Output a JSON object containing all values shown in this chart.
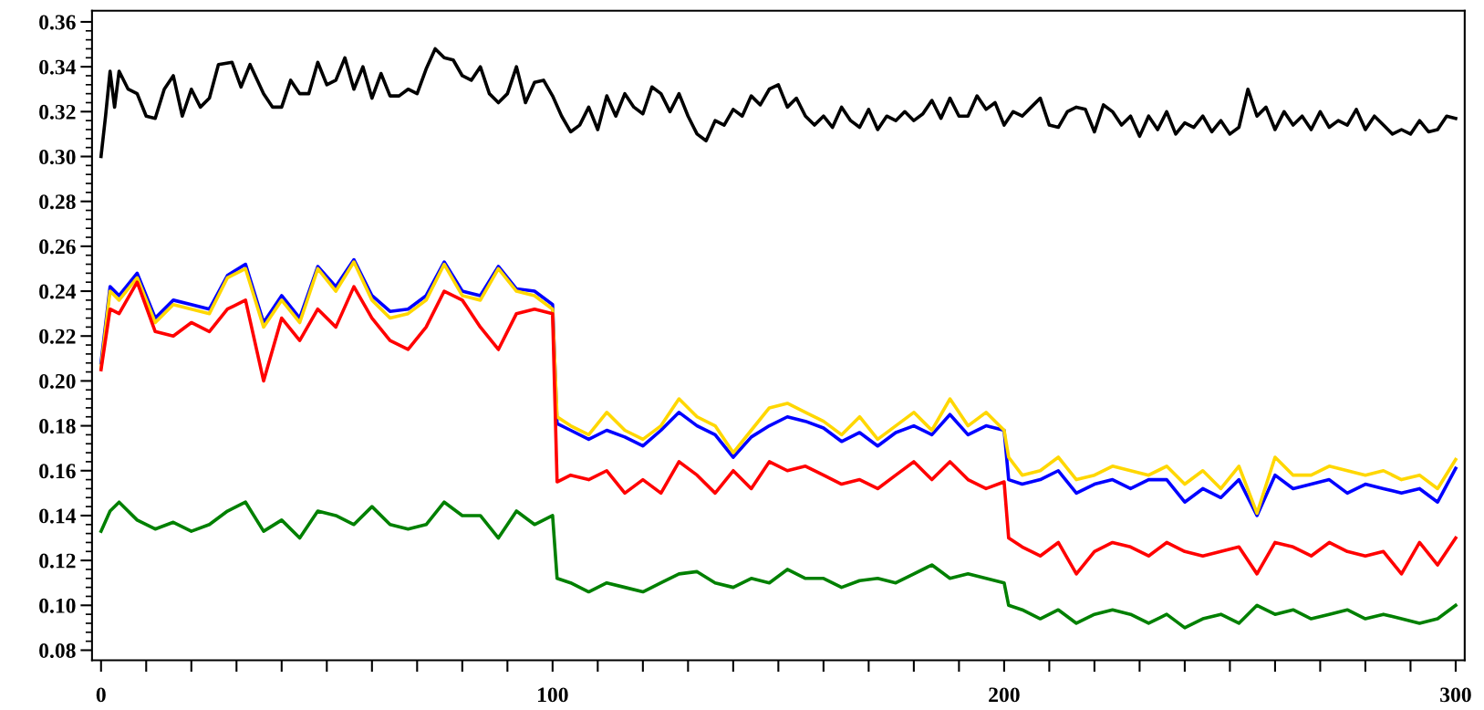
{
  "chart_data": {
    "type": "line",
    "xlim": [
      -2,
      302
    ],
    "ylim": [
      0.0755,
      0.365
    ],
    "xticks": [
      0,
      {
        "value": 10,
        "label": null
      },
      {
        "value": 20,
        "label": null
      },
      {
        "value": 30,
        "label": null
      },
      {
        "value": 40,
        "label": null
      },
      {
        "value": 50,
        "label": null
      },
      {
        "value": 60,
        "label": null
      },
      {
        "value": 70,
        "label": null
      },
      {
        "value": 80,
        "label": null
      },
      {
        "value": 90,
        "label": null
      },
      100,
      {
        "value": 110,
        "label": null
      },
      {
        "value": 120,
        "label": null
      },
      {
        "value": 130,
        "label": null
      },
      {
        "value": 140,
        "label": null
      },
      {
        "value": 150,
        "label": null
      },
      {
        "value": 160,
        "label": null
      },
      {
        "value": 170,
        "label": null
      },
      {
        "value": 180,
        "label": null
      },
      {
        "value": 190,
        "label": null
      },
      200,
      {
        "value": 210,
        "label": null
      },
      {
        "value": 220,
        "label": null
      },
      {
        "value": 230,
        "label": null
      },
      {
        "value": 240,
        "label": null
      },
      {
        "value": 250,
        "label": null
      },
      {
        "value": 260,
        "label": null
      },
      {
        "value": 270,
        "label": null
      },
      {
        "value": 280,
        "label": null
      },
      {
        "value": 290,
        "label": null
      },
      300
    ],
    "yticks": [
      {
        "value": 0.08,
        "label": "0.08"
      },
      {
        "value": 0.084,
        "label": null
      },
      {
        "value": 0.088,
        "label": null
      },
      {
        "value": 0.092,
        "label": null
      },
      {
        "value": 0.096,
        "label": null
      },
      {
        "value": 0.1,
        "label": "0.10"
      },
      {
        "value": 0.104,
        "label": null
      },
      {
        "value": 0.108,
        "label": null
      },
      {
        "value": 0.112,
        "label": null
      },
      {
        "value": 0.116,
        "label": null
      },
      {
        "value": 0.12,
        "label": "0.12"
      },
      {
        "value": 0.124,
        "label": null
      },
      {
        "value": 0.128,
        "label": null
      },
      {
        "value": 0.132,
        "label": null
      },
      {
        "value": 0.136,
        "label": null
      },
      {
        "value": 0.14,
        "label": "0.14"
      },
      {
        "value": 0.144,
        "label": null
      },
      {
        "value": 0.148,
        "label": null
      },
      {
        "value": 0.152,
        "label": null
      },
      {
        "value": 0.156,
        "label": null
      },
      {
        "value": 0.16,
        "label": "0.16"
      },
      {
        "value": 0.164,
        "label": null
      },
      {
        "value": 0.168,
        "label": null
      },
      {
        "value": 0.172,
        "label": null
      },
      {
        "value": 0.176,
        "label": null
      },
      {
        "value": 0.18,
        "label": "0.18"
      },
      {
        "value": 0.184,
        "label": null
      },
      {
        "value": 0.188,
        "label": null
      },
      {
        "value": 0.192,
        "label": null
      },
      {
        "value": 0.196,
        "label": null
      },
      {
        "value": 0.2,
        "label": "0.20"
      },
      {
        "value": 0.204,
        "label": null
      },
      {
        "value": 0.208,
        "label": null
      },
      {
        "value": 0.212,
        "label": null
      },
      {
        "value": 0.216,
        "label": null
      },
      {
        "value": 0.22,
        "label": "0.22"
      },
      {
        "value": 0.224,
        "label": null
      },
      {
        "value": 0.228,
        "label": null
      },
      {
        "value": 0.232,
        "label": null
      },
      {
        "value": 0.236,
        "label": null
      },
      {
        "value": 0.24,
        "label": "0.24"
      },
      {
        "value": 0.244,
        "label": null
      },
      {
        "value": 0.248,
        "label": null
      },
      {
        "value": 0.252,
        "label": null
      },
      {
        "value": 0.256,
        "label": null
      },
      {
        "value": 0.26,
        "label": "0.26"
      },
      {
        "value": 0.264,
        "label": null
      },
      {
        "value": 0.268,
        "label": null
      },
      {
        "value": 0.272,
        "label": null
      },
      {
        "value": 0.276,
        "label": null
      },
      {
        "value": 0.28,
        "label": "0.28"
      },
      {
        "value": 0.284,
        "label": null
      },
      {
        "value": 0.288,
        "label": null
      },
      {
        "value": 0.292,
        "label": null
      },
      {
        "value": 0.296,
        "label": null
      },
      {
        "value": 0.3,
        "label": "0.30"
      },
      {
        "value": 0.304,
        "label": null
      },
      {
        "value": 0.308,
        "label": null
      },
      {
        "value": 0.312,
        "label": null
      },
      {
        "value": 0.316,
        "label": null
      },
      {
        "value": 0.32,
        "label": "0.32"
      },
      {
        "value": 0.324,
        "label": null
      },
      {
        "value": 0.328,
        "label": null
      },
      {
        "value": 0.332,
        "label": null
      },
      {
        "value": 0.336,
        "label": null
      },
      {
        "value": 0.34,
        "label": "0.34"
      },
      {
        "value": 0.344,
        "label": null
      },
      {
        "value": 0.348,
        "label": null
      },
      {
        "value": 0.352,
        "label": null
      },
      {
        "value": 0.356,
        "label": null
      },
      {
        "value": 0.36,
        "label": "0.36"
      }
    ],
    "grid": false,
    "marker": "none",
    "line_style": "solid",
    "x": [
      0,
      2,
      4,
      8,
      12,
      16,
      20,
      24,
      28,
      32,
      36,
      40,
      44,
      48,
      52,
      56,
      60,
      64,
      68,
      72,
      76,
      80,
      84,
      88,
      92,
      96,
      100,
      101,
      104,
      108,
      112,
      116,
      120,
      124,
      128,
      132,
      136,
      140,
      144,
      148,
      152,
      156,
      160,
      164,
      168,
      172,
      176,
      180,
      184,
      188,
      192,
      196,
      200,
      201,
      204,
      208,
      212,
      216,
      220,
      224,
      228,
      232,
      236,
      240,
      244,
      248,
      252,
      256,
      260,
      264,
      268,
      272,
      276,
      280,
      284,
      288,
      292,
      296,
      300
    ],
    "series": [
      {
        "color": "#000000",
        "x": [
          0,
          1,
          2,
          3,
          4,
          6,
          8,
          10,
          12,
          14,
          16,
          18,
          20,
          22,
          24,
          26,
          29,
          31,
          33,
          36,
          38,
          40,
          42,
          44,
          46,
          48,
          50,
          52,
          54,
          56,
          58,
          60,
          62,
          64,
          66,
          68,
          70,
          72,
          74,
          76,
          78,
          80,
          82,
          84,
          86,
          88,
          90,
          92,
          94,
          96,
          98,
          100,
          102,
          104,
          106,
          108,
          110,
          112,
          114,
          116,
          118,
          120,
          122,
          124,
          126,
          128,
          130,
          132,
          134,
          136,
          138,
          140,
          142,
          144,
          146,
          148,
          150,
          152,
          154,
          156,
          158,
          160,
          162,
          164,
          166,
          168,
          170,
          172,
          174,
          176,
          178,
          180,
          182,
          184,
          186,
          188,
          190,
          192,
          194,
          196,
          198,
          200,
          202,
          204,
          206,
          208,
          210,
          212,
          214,
          216,
          218,
          220,
          222,
          224,
          226,
          228,
          230,
          232,
          234,
          236,
          238,
          240,
          242,
          244,
          246,
          248,
          250,
          252,
          254,
          256,
          258,
          260,
          262,
          264,
          266,
          268,
          270,
          272,
          274,
          276,
          278,
          280,
          282,
          284,
          286,
          288,
          290,
          292,
          294,
          296,
          298,
          300
        ],
        "values": [
          0.3,
          0.318,
          0.338,
          0.322,
          0.338,
          0.33,
          0.328,
          0.318,
          0.317,
          0.33,
          0.336,
          0.318,
          0.33,
          0.322,
          0.326,
          0.341,
          0.342,
          0.331,
          0.341,
          0.328,
          0.322,
          0.322,
          0.334,
          0.328,
          0.328,
          0.342,
          0.332,
          0.334,
          0.344,
          0.33,
          0.34,
          0.326,
          0.337,
          0.327,
          0.327,
          0.33,
          0.328,
          0.339,
          0.348,
          0.344,
          0.343,
          0.336,
          0.334,
          0.34,
          0.328,
          0.324,
          0.328,
          0.34,
          0.324,
          0.333,
          0.334,
          0.327,
          0.318,
          0.311,
          0.314,
          0.322,
          0.312,
          0.327,
          0.318,
          0.328,
          0.322,
          0.319,
          0.331,
          0.328,
          0.32,
          0.328,
          0.318,
          0.31,
          0.307,
          0.316,
          0.314,
          0.321,
          0.318,
          0.327,
          0.323,
          0.33,
          0.332,
          0.322,
          0.326,
          0.318,
          0.314,
          0.318,
          0.313,
          0.322,
          0.316,
          0.313,
          0.321,
          0.312,
          0.318,
          0.316,
          0.32,
          0.316,
          0.319,
          0.325,
          0.317,
          0.326,
          0.318,
          0.318,
          0.327,
          0.321,
          0.324,
          0.314,
          0.32,
          0.318,
          0.322,
          0.326,
          0.314,
          0.313,
          0.32,
          0.322,
          0.321,
          0.311,
          0.323,
          0.32,
          0.314,
          0.318,
          0.309,
          0.318,
          0.312,
          0.32,
          0.31,
          0.315,
          0.313,
          0.318,
          0.311,
          0.316,
          0.31,
          0.313,
          0.33,
          0.318,
          0.322,
          0.312,
          0.32,
          0.314,
          0.318,
          0.312,
          0.32,
          0.313,
          0.316,
          0.314,
          0.321,
          0.312,
          0.318,
          0.314,
          0.31,
          0.312,
          0.31,
          0.316,
          0.311,
          0.312,
          0.318,
          0.317
        ]
      },
      {
        "color": "#0000ff",
        "values": [
          0.208,
          0.242,
          0.238,
          0.248,
          0.228,
          0.236,
          0.234,
          0.232,
          0.247,
          0.252,
          0.226,
          0.238,
          0.228,
          0.251,
          0.242,
          0.254,
          0.238,
          0.231,
          0.232,
          0.238,
          0.253,
          0.24,
          0.238,
          0.251,
          0.241,
          0.24,
          0.234,
          0.181,
          0.178,
          0.174,
          0.178,
          0.175,
          0.171,
          0.178,
          0.186,
          0.18,
          0.176,
          0.166,
          0.175,
          0.18,
          0.184,
          0.182,
          0.179,
          0.173,
          0.177,
          0.171,
          0.177,
          0.18,
          0.176,
          0.185,
          0.176,
          0.18,
          0.178,
          0.156,
          0.154,
          0.156,
          0.16,
          0.15,
          0.154,
          0.156,
          0.152,
          0.156,
          0.156,
          0.146,
          0.152,
          0.148,
          0.156,
          0.14,
          0.158,
          0.152,
          0.154,
          0.156,
          0.15,
          0.154,
          0.152,
          0.15,
          0.152,
          0.146,
          0.161
        ]
      },
      {
        "color": "#ffd700",
        "values": [
          0.206,
          0.24,
          0.236,
          0.246,
          0.226,
          0.234,
          0.232,
          0.23,
          0.246,
          0.25,
          0.224,
          0.236,
          0.226,
          0.25,
          0.24,
          0.253,
          0.236,
          0.228,
          0.23,
          0.236,
          0.252,
          0.238,
          0.236,
          0.25,
          0.24,
          0.238,
          0.232,
          0.184,
          0.18,
          0.176,
          0.186,
          0.178,
          0.174,
          0.18,
          0.192,
          0.184,
          0.18,
          0.168,
          0.178,
          0.188,
          0.19,
          0.186,
          0.182,
          0.176,
          0.184,
          0.174,
          0.18,
          0.186,
          0.178,
          0.192,
          0.18,
          0.186,
          0.178,
          0.166,
          0.158,
          0.16,
          0.166,
          0.156,
          0.158,
          0.162,
          0.16,
          0.158,
          0.162,
          0.154,
          0.16,
          0.152,
          0.162,
          0.141,
          0.166,
          0.158,
          0.158,
          0.162,
          0.16,
          0.158,
          0.16,
          0.156,
          0.158,
          0.152,
          0.165
        ]
      },
      {
        "color": "#ff0000",
        "values": [
          0.205,
          0.232,
          0.23,
          0.244,
          0.222,
          0.22,
          0.226,
          0.222,
          0.232,
          0.236,
          0.2,
          0.228,
          0.218,
          0.232,
          0.224,
          0.242,
          0.228,
          0.218,
          0.214,
          0.224,
          0.24,
          0.236,
          0.224,
          0.214,
          0.23,
          0.232,
          0.23,
          0.155,
          0.158,
          0.156,
          0.16,
          0.15,
          0.156,
          0.15,
          0.164,
          0.158,
          0.15,
          0.16,
          0.152,
          0.164,
          0.16,
          0.162,
          0.158,
          0.154,
          0.156,
          0.152,
          0.158,
          0.164,
          0.156,
          0.164,
          0.156,
          0.152,
          0.155,
          0.13,
          0.126,
          0.122,
          0.128,
          0.114,
          0.124,
          0.128,
          0.126,
          0.122,
          0.128,
          0.124,
          0.122,
          0.124,
          0.126,
          0.114,
          0.128,
          0.126,
          0.122,
          0.128,
          0.124,
          0.122,
          0.124,
          0.114,
          0.128,
          0.118,
          0.13
        ]
      },
      {
        "color": "#008000",
        "values": [
          0.133,
          0.142,
          0.146,
          0.138,
          0.134,
          0.137,
          0.133,
          0.136,
          0.142,
          0.146,
          0.133,
          0.138,
          0.13,
          0.142,
          0.14,
          0.136,
          0.144,
          0.136,
          0.134,
          0.136,
          0.146,
          0.14,
          0.14,
          0.13,
          0.142,
          0.136,
          0.14,
          0.112,
          0.11,
          0.106,
          0.11,
          0.108,
          0.106,
          0.11,
          0.114,
          0.115,
          0.11,
          0.108,
          0.112,
          0.11,
          0.116,
          0.112,
          0.112,
          0.108,
          0.111,
          0.112,
          0.11,
          0.114,
          0.118,
          0.112,
          0.114,
          0.112,
          0.11,
          0.1,
          0.098,
          0.094,
          0.098,
          0.092,
          0.096,
          0.098,
          0.096,
          0.092,
          0.096,
          0.09,
          0.094,
          0.096,
          0.092,
          0.1,
          0.096,
          0.098,
          0.094,
          0.096,
          0.098,
          0.094,
          0.096,
          0.094,
          0.092,
          0.094,
          0.1
        ]
      }
    ]
  }
}
